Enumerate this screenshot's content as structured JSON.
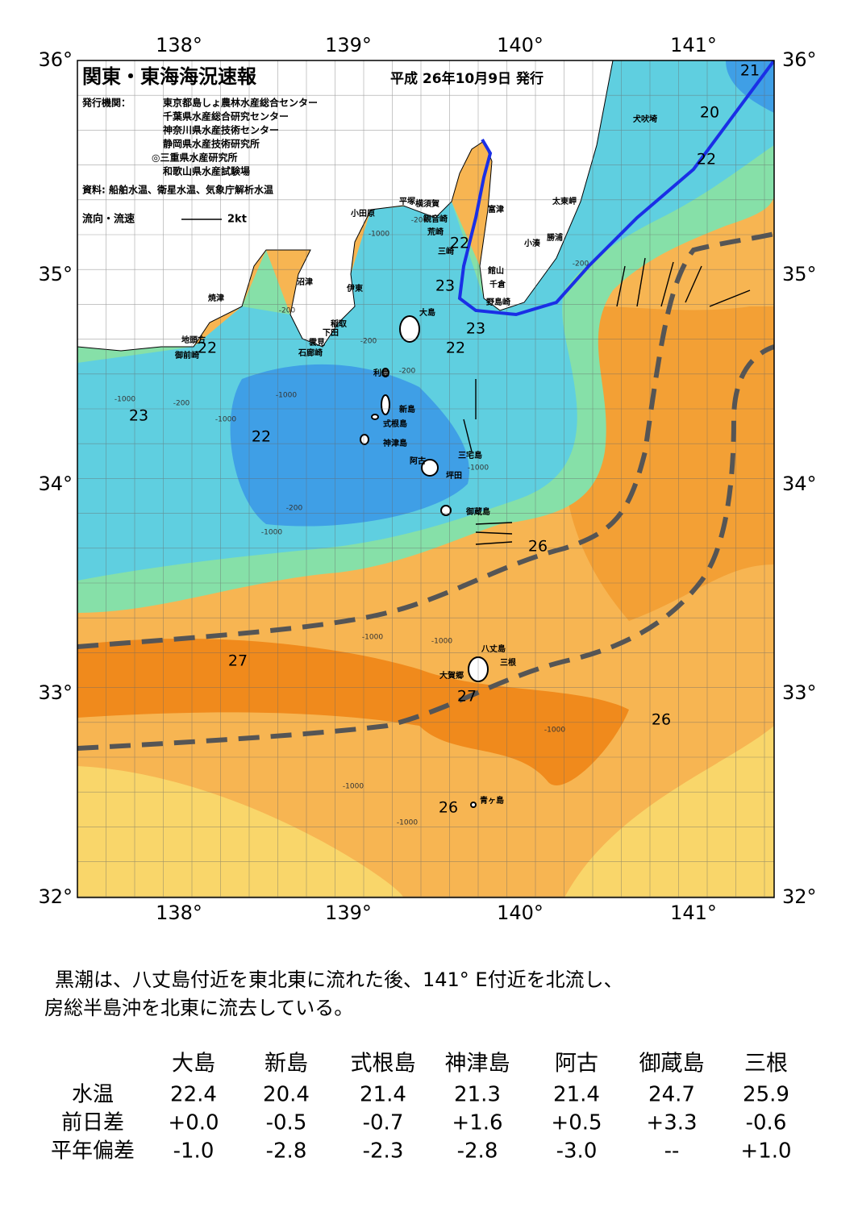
{
  "map": {
    "title": "関東・東海海況速報",
    "date": "平成 26年10月9日 発行",
    "issuer_label": "発行機関：",
    "issuers": [
      "東京都島しょ農林水産総合センター",
      "千葉県水産総合研究センター",
      "神奈川県水産技術センター",
      "静岡県水産技術研究所",
      "◎三重県水産研究所",
      "和歌山県水産試験場"
    ],
    "source": "資料: 船舶水温、衛星水温、気象庁解析水温",
    "legend_label": "流向・流速",
    "legend_speed": "2kt",
    "lon_labels": [
      "138°",
      "139°",
      "140°",
      "141°"
    ],
    "lat_labels": [
      "36°",
      "35°",
      "34°",
      "33°",
      "32°"
    ],
    "places": [
      "犬吠埼",
      "太東岬",
      "勝浦",
      "小湊",
      "富津",
      "館山",
      "千倉",
      "野島崎",
      "横須賀",
      "観音崎",
      "荒崎",
      "三崎",
      "平塚",
      "小田原",
      "沼津",
      "伊東",
      "焼津",
      "稲取",
      "下田",
      "雲見",
      "石廊崎",
      "地頭方",
      "御前崎",
      "大島",
      "利島",
      "新島",
      "式根島",
      "神津島",
      "三宅島",
      "阿古",
      "坪田",
      "御蔵島",
      "八丈島",
      "三根",
      "大賀郷",
      "青ヶ島"
    ],
    "temperature_labels": [
      "21",
      "20",
      "22",
      "22",
      "23",
      "23",
      "22",
      "22",
      "23",
      "22",
      "26",
      "27",
      "27",
      "26",
      "26"
    ],
    "depth_labels": [
      "-200",
      "-1000",
      "-200",
      "-200",
      "-200",
      "-200",
      "-1000",
      "-200",
      "-1000",
      "-1000",
      "-200",
      "-1000",
      "-1000",
      "-1000",
      "-1000",
      "-1000",
      "-1000",
      "-1000"
    ]
  },
  "text": {
    "lines": [
      "黒潮は、八丈島付近を東北東に流れた後、141° E付近を北流し、",
      "房総半島沖を北東に流去している。"
    ]
  },
  "table": {
    "header": [
      "大島",
      "新島",
      "式根島",
      "神津島",
      "阿古",
      "御蔵島",
      "三根"
    ],
    "rows": [
      [
        "水温",
        "22.4",
        "20.4",
        "21.4",
        "21.3",
        "21.4",
        "24.7",
        "25.9"
      ],
      [
        "前日差",
        "+0.0",
        "-0.5",
        "-0.7",
        "+1.6",
        "+0.5",
        "+3.3",
        "-0.6"
      ],
      [
        "平年偏差",
        "-1.0",
        "-2.8",
        "-2.3",
        "-2.8",
        "-3.0",
        "--",
        "+1.0"
      ]
    ]
  }
}
